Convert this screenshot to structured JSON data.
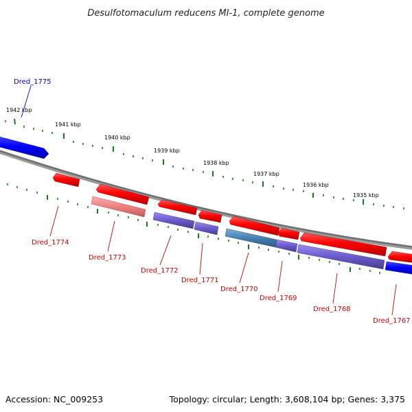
{
  "title": "Desulfotomaculum reducens MI-1, complete genome",
  "footer": {
    "accession": "Accession: NC_009253",
    "summary": "Topology: circular; Length: 3,608,104 bp; Genes: 3,375"
  },
  "scale_labels": [
    "1942 kbp",
    "1941 kbp",
    "1940 kbp",
    "1939 kbp",
    "1938 kbp",
    "1937 kbp",
    "1936 kbp",
    "1935 kbp"
  ],
  "genes": [
    {
      "label": "Dred_1775",
      "color": "#0000cc",
      "strand": "forward"
    },
    {
      "label": "Dred_1774",
      "color": "#cc0000",
      "strand": "reverse"
    },
    {
      "label": "Dred_1773",
      "color": "#cc0000",
      "strand": "reverse"
    },
    {
      "label": "Dred_1772",
      "color": "#cc0000",
      "strand": "reverse"
    },
    {
      "label": "Dred_1771",
      "color": "#cc0000",
      "strand": "reverse"
    },
    {
      "label": "Dred_1770",
      "color": "#cc0000",
      "strand": "reverse"
    },
    {
      "label": "Dred_1769",
      "color": "#cc0000",
      "strand": "reverse"
    },
    {
      "label": "Dred_1768",
      "color": "#cc0000",
      "strand": "reverse"
    },
    {
      "label": "Dred_1767",
      "color": "#cc0000",
      "strand": "reverse"
    }
  ],
  "colors": {
    "backbone": "#888888",
    "tick": "#1a7a1a",
    "cds_red": "#ff0000",
    "cds_blue": "#0000ff",
    "cog_purple": "#6a5acd",
    "cog_pink": "#f08080",
    "cog_steel": "#4682b4"
  }
}
